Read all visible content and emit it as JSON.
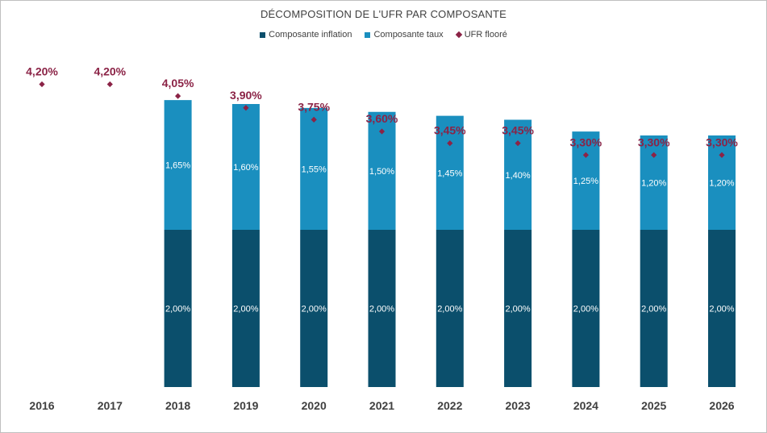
{
  "chart_data": {
    "type": "bar",
    "stacked": true,
    "title": "DÉCOMPOSITION DE L'UFR PAR COMPOSANTE",
    "categories": [
      "2016",
      "2017",
      "2018",
      "2019",
      "2020",
      "2021",
      "2022",
      "2023",
      "2024",
      "2025",
      "2026"
    ],
    "series": [
      {
        "name": "Composante inflation",
        "kind": "bar",
        "color": "#0b4f6c",
        "values": [
          null,
          null,
          2.0,
          2.0,
          2.0,
          2.0,
          2.0,
          2.0,
          2.0,
          2.0,
          2.0
        ],
        "labels": [
          "",
          "",
          "2,00%",
          "2,00%",
          "2,00%",
          "2,00%",
          "2,00%",
          "2,00%",
          "2,00%",
          "2,00%",
          "2,00%"
        ]
      },
      {
        "name": "Composante taux",
        "kind": "bar",
        "color": "#1a8fbf",
        "values": [
          null,
          null,
          1.65,
          1.6,
          1.55,
          1.5,
          1.45,
          1.4,
          1.25,
          1.2,
          1.2
        ],
        "labels": [
          "",
          "",
          "1,65%",
          "1,60%",
          "1,55%",
          "1,50%",
          "1,45%",
          "1,40%",
          "1,25%",
          "1,20%",
          "1,20%"
        ]
      },
      {
        "name": "UFR flooré",
        "kind": "marker",
        "color": "#8b2346",
        "values": [
          4.2,
          4.2,
          4.05,
          3.9,
          3.75,
          3.6,
          3.45,
          3.45,
          3.3,
          3.3,
          3.3
        ],
        "labels": [
          "4,20%",
          "4,20%",
          "4,05%",
          "3,90%",
          "3,75%",
          "3,60%",
          "3,45%",
          "3,45%",
          "3,30%",
          "3,30%",
          "3,30%"
        ]
      }
    ],
    "ylim": [
      0,
      4.8
    ],
    "xlabel": "",
    "ylabel": "",
    "grid": false,
    "legend": "top-center"
  }
}
